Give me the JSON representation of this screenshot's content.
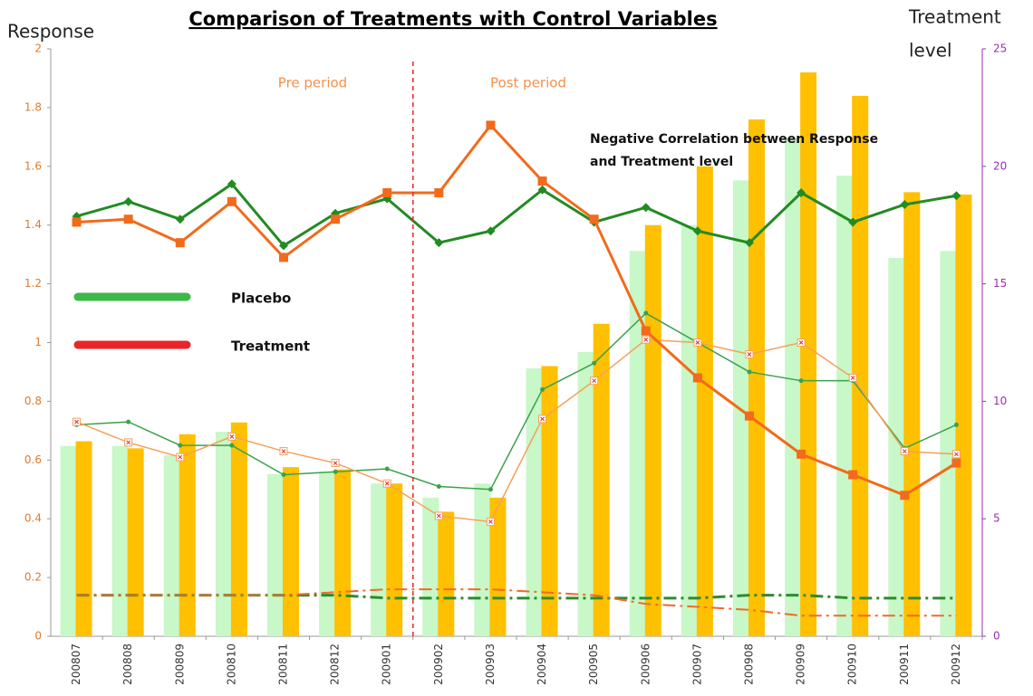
{
  "chart_data": {
    "type": "bar",
    "title": "Comparison of Treatments with Control Variables",
    "ylabel": "Response",
    "y2label": [
      "Treatment",
      "level"
    ],
    "annotations": {
      "pre": "Pre period",
      "post": "Post period",
      "note": [
        "Negative Correlation between Response",
        "and Treatment level"
      ]
    },
    "categories": [
      "200807",
      "200808",
      "200809",
      "200810",
      "200811",
      "200812",
      "200901",
      "200902",
      "200903",
      "200904",
      "200905",
      "200906",
      "200907",
      "200908",
      "200909",
      "200910",
      "200911",
      "200912"
    ],
    "ylim": [
      0,
      2
    ],
    "yticks": [
      0,
      0.2,
      0.4,
      0.6,
      0.8,
      1,
      1.2,
      1.4,
      1.6,
      1.8,
      2
    ],
    "y2lim": [
      0,
      25
    ],
    "y2ticks": [
      0,
      5,
      10,
      15,
      20,
      25
    ],
    "legend": [
      {
        "name": "Placebo",
        "color": "#3cb94a"
      },
      {
        "name": "Treatment",
        "color": "#e8262a"
      }
    ],
    "series": [
      {
        "type": "bar",
        "axis": "y2",
        "color": "#c8f7c8",
        "values": [
          8.1,
          8.1,
          7.7,
          8.7,
          6.9,
          7,
          6.5,
          5.9,
          6.5,
          11.4,
          12.1,
          16.4,
          17.5,
          19.4,
          21.2,
          19.6,
          16.1,
          16.4
        ]
      },
      {
        "type": "bar",
        "axis": "y2",
        "color": "#ffc000",
        "values": [
          8.3,
          8,
          8.6,
          9.1,
          7.2,
          7.1,
          6.5,
          5.3,
          5.9,
          11.5,
          13.3,
          17.5,
          20,
          22,
          24,
          23,
          18.9,
          18.8
        ]
      },
      {
        "type": "line",
        "color": "#3aa24a",
        "width": 1.5,
        "marker": "dot",
        "values": [
          0.72,
          0.73,
          0.65,
          0.65,
          0.55,
          0.56,
          0.57,
          0.51,
          0.5,
          0.84,
          0.93,
          1.1,
          1,
          0.9,
          0.87,
          0.87,
          0.64,
          0.72
        ]
      },
      {
        "type": "line",
        "color": "#f5a05a",
        "width": 1.5,
        "marker": "x",
        "values": [
          0.73,
          0.66,
          0.61,
          0.68,
          0.63,
          0.59,
          0.52,
          0.41,
          0.39,
          0.74,
          0.87,
          1.01,
          1,
          0.96,
          1,
          0.88,
          0.63,
          0.62
        ]
      },
      {
        "type": "line",
        "color": "#2e8b2e",
        "width": 3,
        "dashed": true,
        "marker": "none",
        "values": [
          0.14,
          0.14,
          0.14,
          0.14,
          0.14,
          0.14,
          0.13,
          0.13,
          0.13,
          0.13,
          0.13,
          0.13,
          0.13,
          0.14,
          0.14,
          0.13,
          0.13,
          0.13
        ]
      },
      {
        "type": "line",
        "color": "#f06a2a",
        "width": 2,
        "dashed": true,
        "marker": "none",
        "values": [
          0.14,
          0.14,
          0.14,
          0.14,
          0.14,
          0.15,
          0.16,
          0.16,
          0.16,
          0.15,
          0.14,
          0.11,
          0.1,
          0.09,
          0.07,
          0.07,
          0.07,
          0.07
        ]
      },
      {
        "type": "line",
        "color": "#228b22",
        "width": 3,
        "marker": "diamond",
        "values": [
          1.43,
          1.48,
          1.42,
          1.54,
          1.33,
          1.44,
          1.49,
          1.34,
          1.38,
          1.52,
          1.41,
          1.46,
          1.38,
          1.34,
          1.51,
          1.41,
          1.47,
          1.5
        ]
      },
      {
        "type": "line",
        "color": "#f26a1b",
        "width": 3,
        "marker": "square",
        "values": [
          1.41,
          1.42,
          1.34,
          1.48,
          1.29,
          1.42,
          1.51,
          1.51,
          1.74,
          1.55,
          1.42,
          1.04,
          0.88,
          0.75,
          0.62,
          0.55,
          0.48,
          0.59
        ]
      }
    ]
  }
}
